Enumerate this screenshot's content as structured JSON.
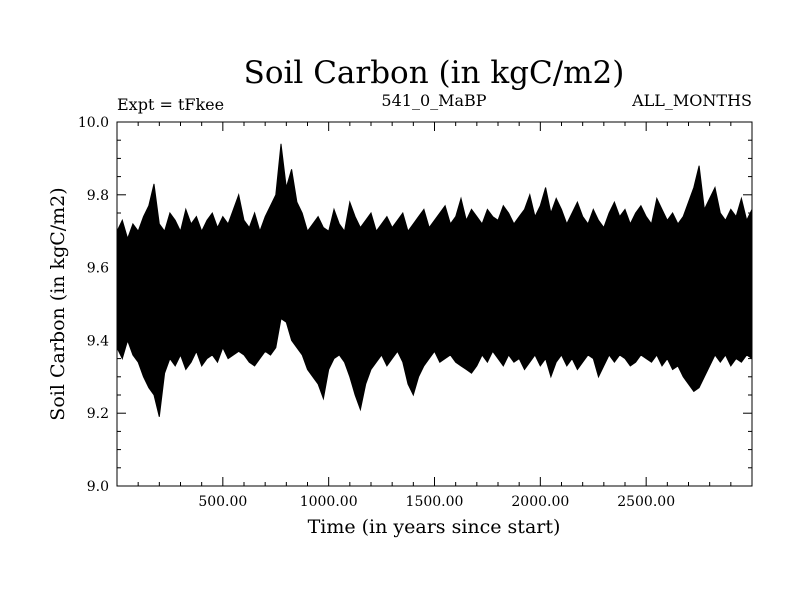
{
  "chart_data": {
    "type": "line",
    "title": "Soil Carbon (in kgC/m2)",
    "subtitle_left": "Expt = tFkee",
    "subtitle_center": "541_0_MaBP",
    "subtitle_right": "ALL_MONTHS",
    "xlabel": "Time (in years since start)",
    "ylabel": "Soil Carbon (in kgC/m2)",
    "xlim": [
      0,
      3000
    ],
    "ylim": [
      9.0,
      10.0
    ],
    "x_ticks": [
      500,
      1000,
      1500,
      2000,
      2500
    ],
    "x_tick_labels": [
      "500.00",
      "1000.00",
      "1500.00",
      "2000.00",
      "2500.00"
    ],
    "y_ticks": [
      9.0,
      9.2,
      9.4,
      9.6,
      9.8,
      10.0
    ],
    "y_tick_labels": [
      "9.0",
      "9.2",
      "9.4",
      "9.6",
      "9.8",
      "10.0"
    ],
    "series": [
      {
        "color": "#000000",
        "x": [
          0,
          25,
          50,
          75,
          100,
          125,
          150,
          175,
          200,
          225,
          250,
          275,
          300,
          325,
          350,
          375,
          400,
          425,
          450,
          475,
          500,
          525,
          550,
          575,
          600,
          625,
          650,
          675,
          700,
          725,
          750,
          775,
          800,
          825,
          850,
          875,
          900,
          925,
          950,
          975,
          1000,
          1025,
          1050,
          1075,
          1100,
          1125,
          1150,
          1175,
          1200,
          1225,
          1250,
          1275,
          1300,
          1325,
          1350,
          1375,
          1400,
          1425,
          1450,
          1475,
          1500,
          1525,
          1550,
          1575,
          1600,
          1625,
          1650,
          1675,
          1700,
          1725,
          1750,
          1775,
          1800,
          1825,
          1850,
          1875,
          1900,
          1925,
          1950,
          1975,
          2000,
          2025,
          2050,
          2075,
          2100,
          2125,
          2150,
          2175,
          2200,
          2225,
          2250,
          2275,
          2300,
          2325,
          2350,
          2375,
          2400,
          2425,
          2450,
          2475,
          2500,
          2525,
          2550,
          2575,
          2600,
          2625,
          2650,
          2675,
          2700,
          2725,
          2750,
          2775,
          2800,
          2825,
          2850,
          2875,
          2900,
          2925,
          2950,
          2975,
          3000
        ],
        "y_max": [
          9.7,
          9.73,
          9.68,
          9.72,
          9.7,
          9.74,
          9.77,
          9.83,
          9.72,
          9.7,
          9.75,
          9.73,
          9.7,
          9.76,
          9.72,
          9.74,
          9.7,
          9.73,
          9.75,
          9.71,
          9.74,
          9.72,
          9.76,
          9.8,
          9.73,
          9.71,
          9.75,
          9.7,
          9.74,
          9.77,
          9.8,
          9.94,
          9.82,
          9.87,
          9.78,
          9.75,
          9.7,
          9.72,
          9.74,
          9.71,
          9.7,
          9.76,
          9.72,
          9.7,
          9.78,
          9.74,
          9.71,
          9.73,
          9.75,
          9.7,
          9.72,
          9.74,
          9.71,
          9.73,
          9.75,
          9.7,
          9.72,
          9.74,
          9.76,
          9.71,
          9.73,
          9.75,
          9.77,
          9.72,
          9.74,
          9.79,
          9.73,
          9.76,
          9.74,
          9.72,
          9.76,
          9.74,
          9.73,
          9.77,
          9.75,
          9.72,
          9.74,
          9.76,
          9.8,
          9.74,
          9.77,
          9.82,
          9.75,
          9.79,
          9.76,
          9.72,
          9.75,
          9.78,
          9.74,
          9.72,
          9.76,
          9.73,
          9.71,
          9.75,
          9.78,
          9.74,
          9.76,
          9.72,
          9.75,
          9.77,
          9.74,
          9.72,
          9.79,
          9.76,
          9.73,
          9.75,
          9.72,
          9.74,
          9.78,
          9.82,
          9.88,
          9.76,
          9.79,
          9.82,
          9.75,
          9.73,
          9.76,
          9.74,
          9.79,
          9.73,
          9.76
        ],
        "y_min": [
          9.38,
          9.35,
          9.4,
          9.36,
          9.34,
          9.3,
          9.27,
          9.25,
          9.19,
          9.31,
          9.35,
          9.33,
          9.36,
          9.32,
          9.34,
          9.37,
          9.33,
          9.35,
          9.36,
          9.34,
          9.38,
          9.35,
          9.36,
          9.37,
          9.36,
          9.34,
          9.33,
          9.35,
          9.37,
          9.36,
          9.38,
          9.46,
          9.45,
          9.4,
          9.38,
          9.36,
          9.32,
          9.3,
          9.28,
          9.24,
          9.32,
          9.35,
          9.36,
          9.34,
          9.3,
          9.25,
          9.21,
          9.28,
          9.32,
          9.34,
          9.36,
          9.33,
          9.35,
          9.37,
          9.34,
          9.28,
          9.25,
          9.3,
          9.33,
          9.35,
          9.37,
          9.34,
          9.35,
          9.36,
          9.34,
          9.33,
          9.32,
          9.31,
          9.33,
          9.36,
          9.34,
          9.37,
          9.35,
          9.33,
          9.36,
          9.34,
          9.35,
          9.32,
          9.34,
          9.36,
          9.33,
          9.35,
          9.3,
          9.34,
          9.36,
          9.33,
          9.35,
          9.32,
          9.34,
          9.36,
          9.35,
          9.3,
          9.33,
          9.36,
          9.34,
          9.36,
          9.35,
          9.33,
          9.34,
          9.36,
          9.35,
          9.34,
          9.36,
          9.33,
          9.35,
          9.32,
          9.33,
          9.3,
          9.28,
          9.26,
          9.27,
          9.3,
          9.33,
          9.36,
          9.34,
          9.36,
          9.33,
          9.35,
          9.34,
          9.36,
          9.35
        ]
      }
    ]
  }
}
